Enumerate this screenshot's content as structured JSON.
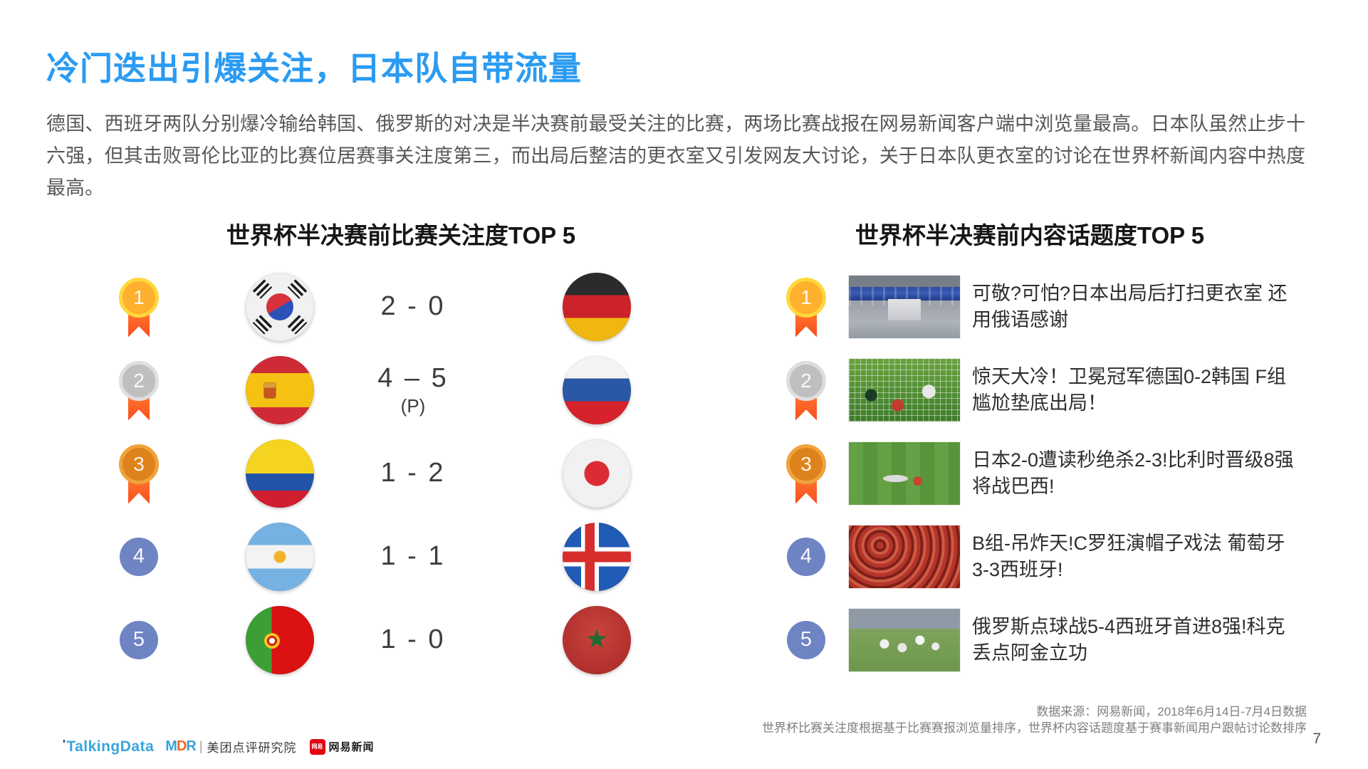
{
  "slide": {
    "title": "冷门迭出引爆关注，日本队自带流量",
    "paragraph": "德国、西班牙两队分别爆冷输给韩国、俄罗斯的对决是半决赛前最受关注的比赛，两场比赛战报在网易新闻客户端中浏览量最高。日本队虽然止步十六强，但其击败哥伦比亚的比赛位居赛事关注度第三，而出局后整洁的更衣室又引发网友大讨论，关于日本队更衣室的讨论在世界杯新闻内容中热度最高。",
    "page_number": "7"
  },
  "left_panel": {
    "header": "世界杯半决赛前比赛关注度TOP 5",
    "rows": [
      {
        "rank": "1",
        "medal": "gold",
        "team_a": "south-korea",
        "score": "2 - 0",
        "note": "",
        "team_b": "germany"
      },
      {
        "rank": "2",
        "medal": "silver",
        "team_a": "spain",
        "score": "4 – 5",
        "note": "(P)",
        "team_b": "russia"
      },
      {
        "rank": "3",
        "medal": "bronze",
        "team_a": "colombia",
        "score": "1 - 2",
        "note": "",
        "team_b": "japan"
      },
      {
        "rank": "4",
        "medal": "none",
        "team_a": "argentina",
        "score": "1 - 1",
        "note": "",
        "team_b": "iceland"
      },
      {
        "rank": "5",
        "medal": "none",
        "team_a": "portugal",
        "score": "1 - 0",
        "note": "",
        "team_b": "morocco"
      }
    ]
  },
  "right_panel": {
    "header": "世界杯半决赛前内容话题度TOP 5",
    "rows": [
      {
        "rank": "1",
        "image": "japan-locker-room",
        "headline": "可敬?可怕?日本出局后打扫更衣室 还用俄语感谢"
      },
      {
        "rank": "2",
        "image": "germany-korea-goal",
        "headline": "惊天大冷！卫冕冠军德国0-2韩国 F组尴尬垫底出局！"
      },
      {
        "rank": "3",
        "image": "japan-belgium-pitch",
        "headline": "日本2-0遭读秒绝杀2-3!比利时晋级8强将战巴西!"
      },
      {
        "rank": "4",
        "image": "portugal-spain-fans",
        "headline": "B组-吊炸天!C罗狂演帽子戏法 葡萄牙3-3西班牙!"
      },
      {
        "rank": "5",
        "image": "russia-spain-celebration",
        "headline": "俄罗斯点球战5-4西班牙首进8强!科克丢点阿金立功"
      }
    ]
  },
  "footer": {
    "source_line1": "数据来源：网易新闻，2018年6月14日-7月4日数据",
    "source_line2": "世界杯比赛关注度根据基于比赛赛报浏览量排序，世界杯内容话题度基于赛事新闻用户跟帖讨论数排序",
    "logos": {
      "tick": "'",
      "talkingdata": "TalkingData",
      "mdr_m": "M",
      "mdr_d": "D",
      "mdr_r": "R",
      "mdr_divider": "|",
      "mdr_label": "美团点评研究院",
      "netease_badge": "网易",
      "netease_label": "网易新闻"
    }
  },
  "colors": {
    "accent_blue": "#2b9bf2",
    "body_gray": "#575757",
    "medal_gold": "#ffb02e",
    "medal_silver": "#bfbfbf",
    "medal_bronze": "#de831c",
    "ribbon_orange": "#f94c1e",
    "rank_blue": "#6e84c3",
    "talkingdata_blue": "#38a5dc",
    "netease_red": "#e60012"
  }
}
